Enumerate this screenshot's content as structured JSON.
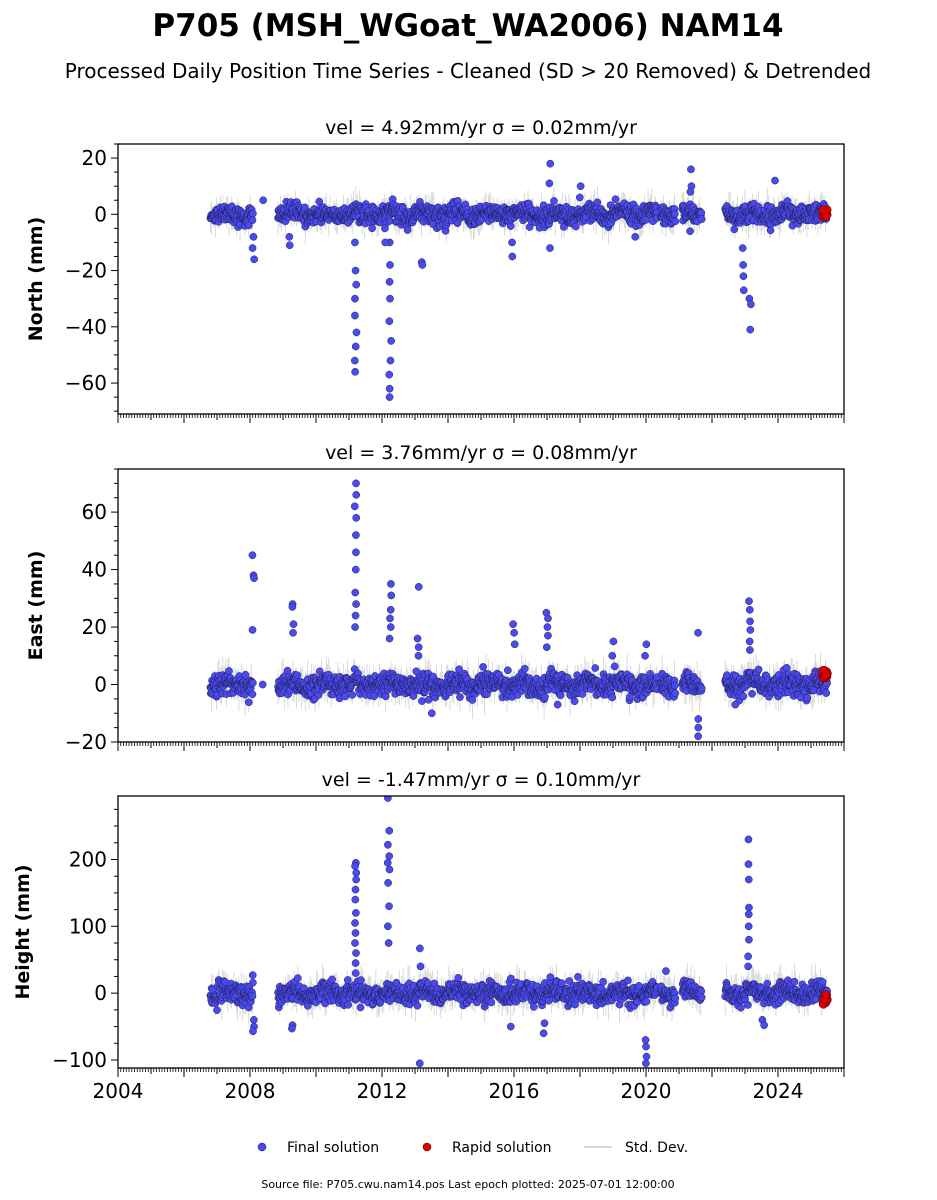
{
  "title": "P705 (MSH_WGoat_WA2006) NAM14",
  "subtitle": "Processed Daily Position Time Series - Cleaned (SD > 20 Removed) & Detrended",
  "footer": "Source file: P705.cwu.nam14.pos  Last epoch plotted: 2025-07-01 12:00:00",
  "legend": {
    "placement": "bottom-center",
    "items": [
      {
        "label": "Final solution",
        "color": "#4444ee",
        "marker": "circle"
      },
      {
        "label": "Rapid solution",
        "color": "#dd0000",
        "marker": "circle"
      },
      {
        "label": "Std. Dev.",
        "color": "#c8c8c8",
        "marker": "line"
      }
    ]
  },
  "colors": {
    "final": "#4a4aee",
    "final_edge": "#1a1a44",
    "rapid": "#e00000",
    "stddev": "#b0b0b0"
  },
  "chart_data": [
    {
      "type": "scatter",
      "name": "north",
      "title": "vel = 4.92mm/yr   σ = 0.02mm/yr",
      "ylabel": "North (mm)",
      "xlim": [
        2004.0,
        2026.0
      ],
      "ylim": [
        -71,
        25
      ],
      "yticks": [
        20,
        0,
        -20,
        -40,
        -60
      ],
      "segments": [
        [
          2006.8,
          2008.1
        ],
        [
          2008.85,
          2020.35
        ],
        [
          2020.45,
          2020.9
        ],
        [
          2021.1,
          2021.7
        ],
        [
          2022.4,
          2025.5
        ]
      ],
      "base_noise": 1.6,
      "outliers": [
        {
          "x": 2008.1,
          "y": [
            -8,
            -12,
            -16
          ]
        },
        {
          "x": 2008.4,
          "y": [
            5
          ]
        },
        {
          "x": 2009.2,
          "y": [
            -8,
            -11
          ]
        },
        {
          "x": 2011.2,
          "y": [
            -10,
            -20,
            -25,
            -30,
            -36,
            -42,
            -47,
            -52,
            -56
          ]
        },
        {
          "x": 2012.25,
          "y": [
            -10,
            -18,
            -24,
            -30,
            -38,
            -45,
            -52,
            -57,
            -62,
            -65
          ]
        },
        {
          "x": 2012.1,
          "y": [
            -5,
            -10
          ]
        },
        {
          "x": 2013.2,
          "y": [
            -17,
            -18
          ]
        },
        {
          "x": 2015.95,
          "y": [
            -10,
            -15
          ]
        },
        {
          "x": 2017.1,
          "y": [
            18,
            11,
            -12
          ]
        },
        {
          "x": 2018.0,
          "y": [
            10,
            6
          ]
        },
        {
          "x": 2019.7,
          "y": [
            -8
          ]
        },
        {
          "x": 2021.35,
          "y": [
            16,
            10,
            8,
            -6
          ]
        },
        {
          "x": 2022.95,
          "y": [
            -12,
            -18,
            -22,
            -27
          ]
        },
        {
          "x": 2023.15,
          "y": [
            -30,
            -32,
            -41
          ]
        },
        {
          "x": 2023.9,
          "y": [
            12
          ]
        }
      ],
      "rapid": {
        "x": [
          2025.35,
          2025.5
        ],
        "y_range": [
          -1.5,
          2
        ]
      }
    },
    {
      "type": "scatter",
      "name": "east",
      "title": "vel = 3.76mm/yr   σ = 0.08mm/yr",
      "ylabel": "East (mm)",
      "xlim": [
        2004.0,
        2026.0
      ],
      "ylim": [
        -20,
        75
      ],
      "yticks": [
        60,
        40,
        20,
        0,
        -20
      ],
      "segments": [
        [
          2006.8,
          2008.1
        ],
        [
          2008.85,
          2020.35
        ],
        [
          2020.45,
          2020.9
        ],
        [
          2021.1,
          2021.7
        ],
        [
          2022.4,
          2025.5
        ]
      ],
      "base_noise": 1.8,
      "outliers": [
        {
          "x": 2008.1,
          "y": [
            45,
            38,
            37,
            19
          ]
        },
        {
          "x": 2008.4,
          "y": [
            0
          ]
        },
        {
          "x": 2009.3,
          "y": [
            28,
            27,
            21,
            18
          ]
        },
        {
          "x": 2011.2,
          "y": [
            70,
            66,
            62,
            58,
            52,
            46,
            40,
            32,
            28,
            24,
            20
          ]
        },
        {
          "x": 2012.25,
          "y": [
            35,
            31,
            26,
            23,
            20,
            16
          ]
        },
        {
          "x": 2013.1,
          "y": [
            34,
            16,
            13,
            10
          ]
        },
        {
          "x": 2013.5,
          "y": [
            -10
          ]
        },
        {
          "x": 2016.0,
          "y": [
            21,
            18,
            14
          ]
        },
        {
          "x": 2017.0,
          "y": [
            25,
            23,
            20,
            17,
            13
          ]
        },
        {
          "x": 2017.3,
          "y": [
            -7
          ]
        },
        {
          "x": 2019.0,
          "y": [
            15,
            10
          ]
        },
        {
          "x": 2020.0,
          "y": [
            14,
            10
          ]
        },
        {
          "x": 2021.6,
          "y": [
            18,
            -12,
            -15,
            -18
          ]
        },
        {
          "x": 2022.7,
          "y": [
            -7
          ]
        },
        {
          "x": 2023.15,
          "y": [
            29,
            26,
            22,
            19,
            15,
            12
          ]
        }
      ],
      "rapid": {
        "x": [
          2025.35,
          2025.5
        ],
        "y_range": [
          2,
          5
        ]
      }
    },
    {
      "type": "scatter",
      "name": "height",
      "title": "vel = -1.47mm/yr   σ = 0.10mm/yr",
      "ylabel": "Height (mm)",
      "xlabel": "",
      "xlim": [
        2004.0,
        2026.0
      ],
      "ylim": [
        -112,
        295
      ],
      "yticks": [
        200,
        100,
        0,
        -100
      ],
      "xticks": [
        2004,
        2008,
        2012,
        2016,
        2020,
        2024
      ],
      "segments": [
        [
          2006.8,
          2008.1
        ],
        [
          2008.85,
          2020.35
        ],
        [
          2020.45,
          2020.9
        ],
        [
          2021.1,
          2021.7
        ],
        [
          2022.4,
          2025.5
        ]
      ],
      "base_noise": 7.5,
      "outliers": [
        {
          "x": 2008.1,
          "y": [
            27,
            -40,
            -50,
            -57
          ]
        },
        {
          "x": 2009.3,
          "y": [
            -48,
            -53
          ]
        },
        {
          "x": 2011.2,
          "y": [
            195,
            190,
            180,
            170,
            155,
            140,
            120,
            105,
            90,
            75,
            60,
            45,
            30
          ]
        },
        {
          "x": 2012.2,
          "y": [
            292,
            243,
            222,
            205,
            195,
            185,
            165,
            130,
            100,
            75
          ]
        },
        {
          "x": 2013.15,
          "y": [
            67,
            40,
            -105
          ]
        },
        {
          "x": 2015.9,
          "y": [
            22,
            -50
          ]
        },
        {
          "x": 2016.9,
          "y": [
            -45,
            -60
          ]
        },
        {
          "x": 2020.0,
          "y": [
            -70,
            -80,
            -95,
            -105
          ]
        },
        {
          "x": 2020.6,
          "y": [
            33
          ]
        },
        {
          "x": 2023.1,
          "y": [
            230,
            193,
            170,
            128,
            118,
            100,
            80,
            55,
            40
          ]
        },
        {
          "x": 2023.55,
          "y": [
            -40,
            -48
          ]
        }
      ],
      "rapid": {
        "x": [
          2025.35,
          2025.5
        ],
        "y_range": [
          -18,
          -2
        ]
      }
    }
  ]
}
